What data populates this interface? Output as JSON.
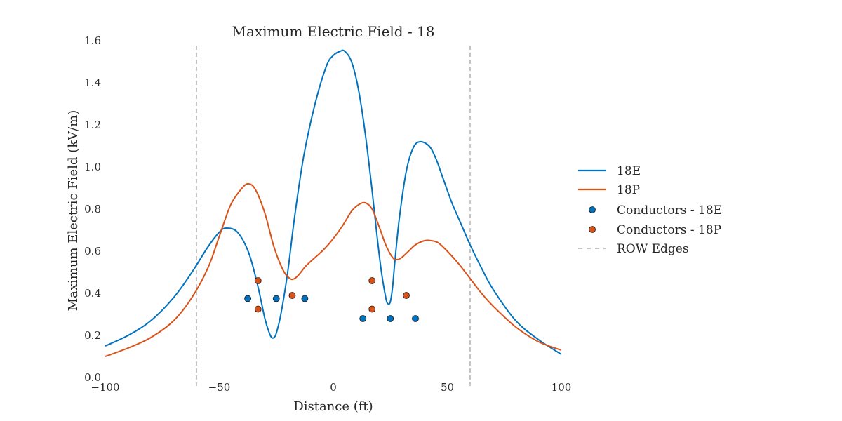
{
  "chart_data": {
    "type": "line",
    "title": "Maximum Electric Field - 18",
    "xlabel": "Distance (ft)",
    "ylabel": "Maximum Electric Field (kV/m)",
    "xlim": [
      -100,
      100
    ],
    "ylim": [
      0,
      1.6
    ],
    "xticks": [
      -100,
      -50,
      0,
      50,
      100
    ],
    "xtick_labels": [
      "−100",
      "−50",
      "0",
      "50",
      "100"
    ],
    "yticks": [
      0.0,
      0.2,
      0.4,
      0.6,
      0.8,
      1.0,
      1.2,
      1.4,
      1.6
    ],
    "ytick_labels": [
      "0.0",
      "0.2",
      "0.4",
      "0.6",
      "0.8",
      "1.0",
      "1.2",
      "1.4",
      "1.6"
    ],
    "grid": false,
    "legend_position": "right",
    "colors": {
      "18E": "#0072bd",
      "18P": "#d95319",
      "row": "#888888"
    },
    "series": [
      {
        "name": "18E",
        "x": [
          -100,
          -90,
          -80,
          -70,
          -62,
          -55,
          -50,
          -47,
          -42,
          -37,
          -33,
          -30,
          -28,
          -27,
          -26,
          -25,
          -23,
          -20,
          -17,
          -13,
          -8,
          -3,
          0,
          3,
          5,
          8,
          11,
          14,
          17,
          19,
          21,
          23,
          24,
          25,
          26,
          27,
          29,
          32,
          35,
          38,
          42,
          45,
          48,
          52,
          56,
          60,
          65,
          70,
          80,
          90,
          100
        ],
        "y": [
          0.15,
          0.2,
          0.27,
          0.38,
          0.5,
          0.62,
          0.69,
          0.71,
          0.69,
          0.59,
          0.43,
          0.28,
          0.21,
          0.19,
          0.19,
          0.21,
          0.3,
          0.5,
          0.76,
          1.05,
          1.3,
          1.48,
          1.53,
          1.55,
          1.55,
          1.5,
          1.37,
          1.16,
          0.89,
          0.69,
          0.51,
          0.38,
          0.35,
          0.36,
          0.43,
          0.55,
          0.76,
          0.98,
          1.09,
          1.12,
          1.1,
          1.04,
          0.95,
          0.83,
          0.73,
          0.63,
          0.52,
          0.42,
          0.27,
          0.18,
          0.11
        ]
      },
      {
        "name": "18P",
        "x": [
          -100,
          -90,
          -80,
          -70,
          -62,
          -55,
          -50,
          -45,
          -40,
          -37,
          -34,
          -30,
          -26,
          -22,
          -19,
          -17,
          -15,
          -12,
          -8,
          -4,
          0,
          4,
          8,
          11,
          14,
          17,
          20,
          23,
          26,
          28,
          30,
          33,
          36,
          40,
          43,
          46,
          50,
          55,
          60,
          65,
          70,
          80,
          90,
          100
        ],
        "y": [
          0.1,
          0.14,
          0.19,
          0.27,
          0.38,
          0.52,
          0.67,
          0.82,
          0.9,
          0.92,
          0.89,
          0.78,
          0.62,
          0.51,
          0.47,
          0.47,
          0.49,
          0.53,
          0.57,
          0.61,
          0.66,
          0.72,
          0.79,
          0.82,
          0.83,
          0.8,
          0.72,
          0.63,
          0.57,
          0.56,
          0.57,
          0.6,
          0.63,
          0.65,
          0.65,
          0.64,
          0.6,
          0.54,
          0.47,
          0.4,
          0.34,
          0.24,
          0.17,
          0.13
        ]
      }
    ],
    "scatter_series": [
      {
        "name": "Conductors - 18E",
        "x": [
          -37.5,
          -25,
          -12.5,
          13,
          25,
          36
        ],
        "y": [
          0.375,
          0.375,
          0.375,
          0.28,
          0.28,
          0.28
        ]
      },
      {
        "name": "Conductors - 18P",
        "x": [
          -33,
          -33,
          -18,
          17,
          17,
          32
        ],
        "y": [
          0.46,
          0.325,
          0.39,
          0.46,
          0.325,
          0.39
        ]
      }
    ],
    "vlines": {
      "name": "ROW Edges",
      "x": [
        -60,
        60
      ]
    },
    "legend": [
      "18E",
      "18P",
      "Conductors - 18E",
      "Conductors - 18P",
      "ROW Edges"
    ]
  }
}
